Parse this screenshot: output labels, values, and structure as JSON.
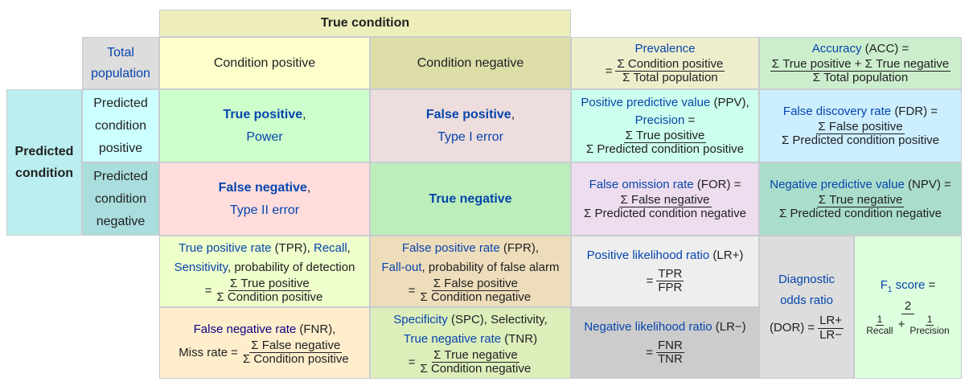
{
  "header": {
    "true_condition": "True condition",
    "total_population_line1": "Total",
    "total_population_line2": "population",
    "condition_positive": "Condition positive",
    "condition_negative": "Condition negative"
  },
  "predicted": {
    "label_line1": "Predicted",
    "label_line2": "condition",
    "positive": [
      "Predicted",
      "condition",
      "positive"
    ],
    "negative": [
      "Predicted",
      "condition",
      "negative"
    ]
  },
  "prevalence": {
    "name": "Prevalence",
    "num": "Σ Condition positive",
    "den": "Σ Total population"
  },
  "accuracy": {
    "name": "Accuracy",
    "abbr": "(ACC) =",
    "num": "Σ True positive + Σ True negative",
    "den": "Σ Total population"
  },
  "true_positive": {
    "name": "True positive",
    "comma": ",",
    "alt": "Power"
  },
  "false_positive": {
    "name": "False positive",
    "comma": ",",
    "alt": "Type I error"
  },
  "false_negative": {
    "name": "False negative",
    "comma": ",",
    "alt": "Type II error"
  },
  "true_negative": {
    "name": "True negative"
  },
  "ppv": {
    "name": "Positive predictive value",
    "abbr": "(PPV),",
    "alt": "Precision",
    "eq": "=",
    "num": "Σ True positive",
    "den": "Σ Predicted condition positive"
  },
  "fdr": {
    "name": "False discovery rate",
    "abbr": "(FDR) =",
    "num": "Σ False positive",
    "den": "Σ Predicted condition positive"
  },
  "for": {
    "name": "False omission rate",
    "abbr": "(FOR) =",
    "num": "Σ False negative",
    "den": "Σ Predicted condition negative"
  },
  "npv": {
    "name": "Negative predictive value",
    "abbr": "(NPV) =",
    "num": "Σ True negative",
    "den": "Σ Predicted condition negative"
  },
  "tpr": {
    "name": "True positive rate",
    "abbr": "(TPR),",
    "recall": "Recall",
    "comma": ",",
    "sensitivity": "Sensitivity",
    "rest": ", probability of detection",
    "num": "Σ True positive",
    "den": "Σ Condition positive"
  },
  "fpr": {
    "name": "False positive rate",
    "abbr": "(FPR),",
    "fallout": "Fall-out",
    "rest": ", probability of false alarm",
    "num": "Σ False positive",
    "den": "Σ Condition negative"
  },
  "fnr": {
    "name": "False negative rate",
    "abbr": "(FNR),",
    "miss": "Miss rate",
    "num": "Σ False negative",
    "den": "Σ Condition positive"
  },
  "spc": {
    "name": "Specificity",
    "abbr": "(SPC), Selectivity,",
    "tnr": "True negative rate",
    "tnr_abbr": "(TNR)",
    "num": "Σ True negative",
    "den": "Σ Condition negative"
  },
  "lrp": {
    "name": "Positive likelihood ratio",
    "abbr": "(LR+)",
    "num": "TPR",
    "den": "FPR"
  },
  "lrn": {
    "name": "Negative likelihood ratio",
    "abbr": "(LR−)",
    "num": "FNR",
    "den": "TNR"
  },
  "dor": {
    "line1": "Diagnostic",
    "line2": "odds ratio",
    "abbr": "(DOR)",
    "num": "LR+",
    "den": "LR−"
  },
  "f1": {
    "name": "F",
    "sub": "1",
    "rest": "score",
    "eq": "=",
    "num": "2",
    "den1_num": "1",
    "den1_den": "Recall",
    "plus": "+",
    "den2_num": "1",
    "den2_den": "Precision"
  },
  "colors": {
    "true_condition": "#eeeebb",
    "total": "#dddddd",
    "cond_pos": "#ffffcc",
    "cond_neg": "#dddda8",
    "predicted": "#bbeeee",
    "pred_pos": "#ccffff",
    "pred_neg": "#aadddd",
    "tp": "#ccffcc",
    "fp": "#eedddd",
    "fn": "#ffdddd",
    "tn": "#bbeebb",
    "prevalence": "#eeeecc",
    "accuracy": "#cceecc",
    "ppv": "#ccffee",
    "fdr": "#cceeff",
    "for": "#eeddee",
    "npv": "#aaddcc",
    "tpr": "#eeffcc",
    "fpr": "#eeddbb",
    "fnr": "#ffeecc",
    "spc": "#ddeebb",
    "lrp": "#eeeeee",
    "lrn": "#cccccc",
    "dor": "#dddddd",
    "f1": "#ddffdd"
  }
}
